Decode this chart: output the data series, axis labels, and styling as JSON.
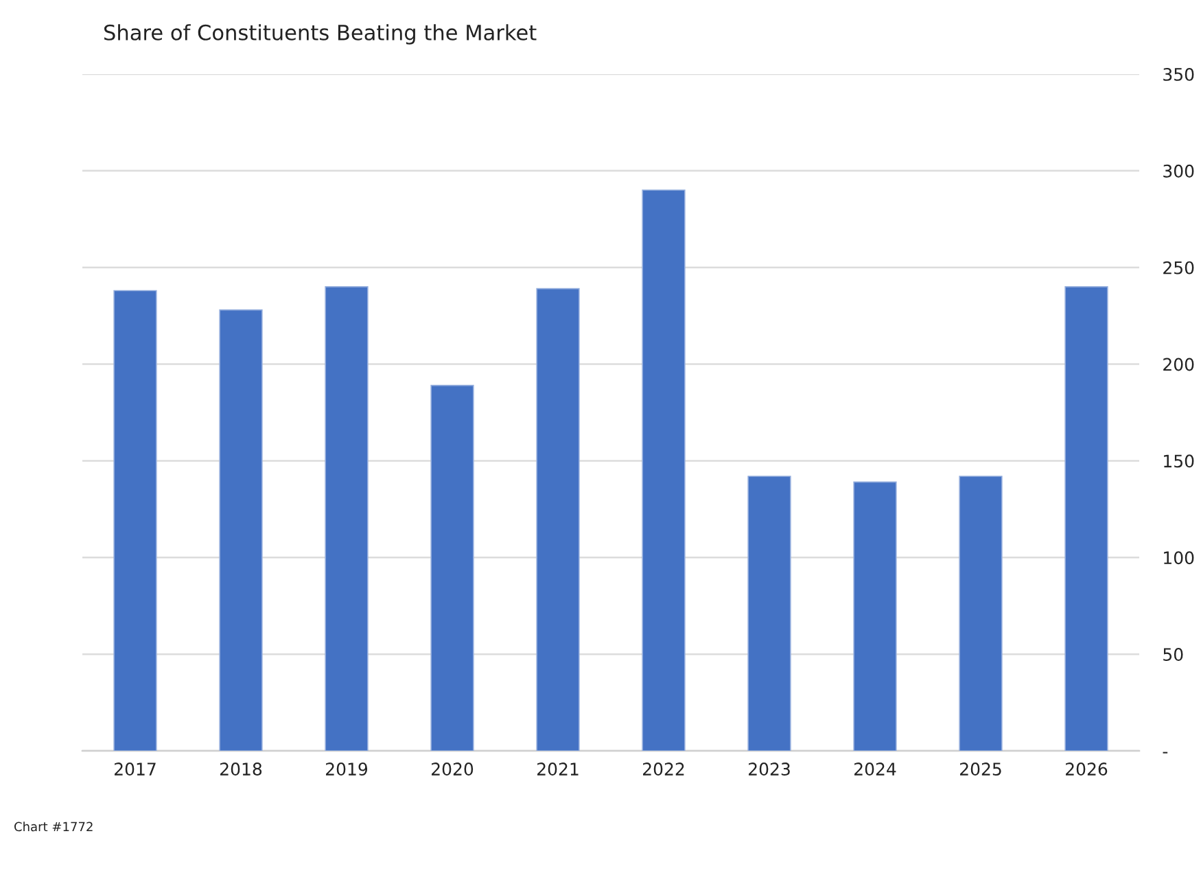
{
  "chart_data": {
    "type": "bar",
    "title": "Share of Constituents Beating the Market",
    "categories": [
      "2017",
      "2018",
      "2019",
      "2020",
      "2021",
      "2022",
      "2023",
      "2024",
      "2025",
      "2026"
    ],
    "values": [
      238,
      228,
      240,
      189,
      239,
      290,
      142,
      139,
      142,
      240
    ],
    "color": "#4472c4",
    "ylim": [
      0,
      350
    ],
    "yticks": [
      {
        "value": 0,
        "label": "-"
      },
      50,
      100,
      150,
      200,
      250,
      300,
      350
    ],
    "grid": "y",
    "annotations": [
      "Chart #1772"
    ]
  }
}
